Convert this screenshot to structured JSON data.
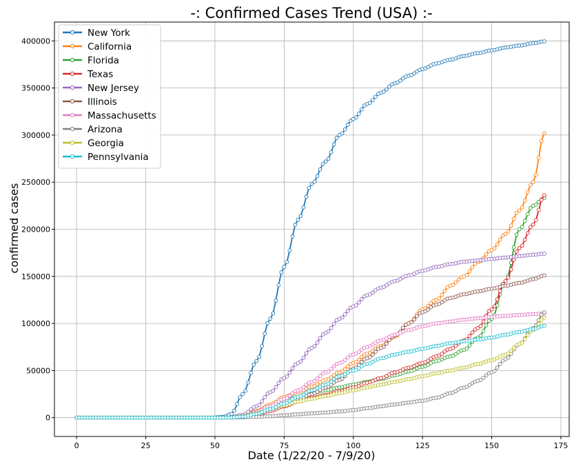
{
  "chart_data": {
    "type": "line",
    "title": "-: Confirmed Cases Trend (USA) :-",
    "xlabel": "Date (1/22/20 - 7/9/20)",
    "ylabel": "confirmed cases",
    "xlim": [
      -8,
      178
    ],
    "ylim": [
      -20000,
      420000
    ],
    "x_ticks": [
      0,
      25,
      50,
      75,
      100,
      125,
      150,
      175
    ],
    "y_ticks": [
      0,
      50000,
      100000,
      150000,
      200000,
      250000,
      300000,
      350000,
      400000
    ],
    "x_tick_labels": [
      "0",
      "25",
      "50",
      "75",
      "100",
      "125",
      "150",
      "175"
    ],
    "y_tick_labels": [
      "0",
      "50000",
      "100000",
      "150000",
      "200000",
      "250000",
      "300000",
      "350000",
      "400000"
    ],
    "grid": true,
    "legend_position": "top-left",
    "series": [
      {
        "name": "New York",
        "color": "#1f77b4",
        "anchors": [
          [
            0,
            0
          ],
          [
            48,
            0
          ],
          [
            53,
            800
          ],
          [
            56,
            4000
          ],
          [
            60,
            25000
          ],
          [
            65,
            60000
          ],
          [
            70,
            105000
          ],
          [
            75,
            160000
          ],
          [
            80,
            210000
          ],
          [
            85,
            248000
          ],
          [
            90,
            272000
          ],
          [
            95,
            300000
          ],
          [
            100,
            317000
          ],
          [
            105,
            333000
          ],
          [
            110,
            345000
          ],
          [
            115,
            355000
          ],
          [
            120,
            363000
          ],
          [
            125,
            370000
          ],
          [
            130,
            376000
          ],
          [
            135,
            380000
          ],
          [
            140,
            384000
          ],
          [
            145,
            387000
          ],
          [
            150,
            390000
          ],
          [
            155,
            393000
          ],
          [
            160,
            395000
          ],
          [
            165,
            397500
          ],
          [
            169,
            399500
          ]
        ]
      },
      {
        "name": "California",
        "color": "#ff7f0e",
        "anchors": [
          [
            0,
            0
          ],
          [
            55,
            0
          ],
          [
            60,
            2000
          ],
          [
            65,
            7000
          ],
          [
            70,
            14000
          ],
          [
            75,
            22000
          ],
          [
            80,
            27000
          ],
          [
            85,
            33000
          ],
          [
            90,
            40000
          ],
          [
            95,
            48000
          ],
          [
            100,
            58000
          ],
          [
            105,
            68000
          ],
          [
            110,
            76000
          ],
          [
            115,
            86000
          ],
          [
            120,
            100000
          ],
          [
            125,
            115000
          ],
          [
            130,
            125000
          ],
          [
            135,
            140000
          ],
          [
            140,
            150000
          ],
          [
            145,
            165000
          ],
          [
            150,
            178000
          ],
          [
            155,
            195000
          ],
          [
            160,
            220000
          ],
          [
            165,
            250000
          ],
          [
            169,
            302000
          ]
        ]
      },
      {
        "name": "Florida",
        "color": "#2ca02c",
        "anchors": [
          [
            0,
            0
          ],
          [
            55,
            0
          ],
          [
            60,
            1500
          ],
          [
            65,
            6000
          ],
          [
            70,
            12000
          ],
          [
            75,
            17500
          ],
          [
            80,
            22000
          ],
          [
            85,
            26000
          ],
          [
            90,
            29000
          ],
          [
            95,
            32000
          ],
          [
            100,
            35000
          ],
          [
            105,
            38000
          ],
          [
            110,
            41000
          ],
          [
            115,
            45000
          ],
          [
            120,
            49000
          ],
          [
            125,
            54000
          ],
          [
            130,
            60000
          ],
          [
            135,
            65000
          ],
          [
            140,
            72000
          ],
          [
            145,
            85000
          ],
          [
            150,
            105000
          ],
          [
            155,
            145000
          ],
          [
            160,
            200000
          ],
          [
            165,
            225000
          ],
          [
            169,
            233000
          ]
        ]
      },
      {
        "name": "Texas",
        "color": "#d62728",
        "anchors": [
          [
            0,
            0
          ],
          [
            55,
            0
          ],
          [
            60,
            800
          ],
          [
            65,
            3000
          ],
          [
            70,
            7000
          ],
          [
            75,
            12000
          ],
          [
            80,
            17000
          ],
          [
            85,
            21000
          ],
          [
            90,
            24000
          ],
          [
            95,
            28000
          ],
          [
            100,
            32000
          ],
          [
            105,
            37000
          ],
          [
            110,
            42000
          ],
          [
            115,
            48000
          ],
          [
            120,
            53000
          ],
          [
            125,
            58000
          ],
          [
            130,
            65000
          ],
          [
            135,
            73000
          ],
          [
            140,
            82000
          ],
          [
            145,
            95000
          ],
          [
            150,
            115000
          ],
          [
            155,
            145000
          ],
          [
            160,
            180000
          ],
          [
            165,
            205000
          ],
          [
            169,
            236000
          ]
        ]
      },
      {
        "name": "New Jersey",
        "color": "#9467bd",
        "anchors": [
          [
            0,
            0
          ],
          [
            55,
            0
          ],
          [
            60,
            3000
          ],
          [
            65,
            12000
          ],
          [
            70,
            27000
          ],
          [
            75,
            42000
          ],
          [
            80,
            58000
          ],
          [
            85,
            74000
          ],
          [
            90,
            90000
          ],
          [
            95,
            105000
          ],
          [
            100,
            118000
          ],
          [
            105,
            130000
          ],
          [
            110,
            138000
          ],
          [
            115,
            145000
          ],
          [
            120,
            151000
          ],
          [
            125,
            156000
          ],
          [
            130,
            160000
          ],
          [
            135,
            163000
          ],
          [
            140,
            165500
          ],
          [
            145,
            167000
          ],
          [
            150,
            168500
          ],
          [
            155,
            170000
          ],
          [
            160,
            171500
          ],
          [
            165,
            173000
          ],
          [
            169,
            174000
          ]
        ]
      },
      {
        "name": "Illinois",
        "color": "#8c564b",
        "anchors": [
          [
            0,
            0
          ],
          [
            55,
            0
          ],
          [
            60,
            1000
          ],
          [
            65,
            4000
          ],
          [
            70,
            9000
          ],
          [
            75,
            14000
          ],
          [
            80,
            19000
          ],
          [
            85,
            25000
          ],
          [
            90,
            32000
          ],
          [
            95,
            40000
          ],
          [
            100,
            52000
          ],
          [
            105,
            63000
          ],
          [
            110,
            74000
          ],
          [
            115,
            87000
          ],
          [
            120,
            100000
          ],
          [
            125,
            112000
          ],
          [
            130,
            120000
          ],
          [
            135,
            127000
          ],
          [
            140,
            131000
          ],
          [
            145,
            134000
          ],
          [
            150,
            137000
          ],
          [
            155,
            140000
          ],
          [
            160,
            143000
          ],
          [
            165,
            147000
          ],
          [
            169,
            151000
          ]
        ]
      },
      {
        "name": "Massachusetts",
        "color": "#e377c2",
        "anchors": [
          [
            0,
            0
          ],
          [
            55,
            0
          ],
          [
            60,
            1500
          ],
          [
            65,
            6000
          ],
          [
            70,
            12000
          ],
          [
            75,
            20000
          ],
          [
            80,
            29000
          ],
          [
            85,
            38000
          ],
          [
            90,
            48000
          ],
          [
            95,
            58000
          ],
          [
            100,
            67000
          ],
          [
            105,
            75000
          ],
          [
            110,
            82000
          ],
          [
            115,
            88000
          ],
          [
            120,
            93000
          ],
          [
            125,
            97000
          ],
          [
            130,
            100000
          ],
          [
            135,
            102000
          ],
          [
            140,
            104000
          ],
          [
            145,
            105500
          ],
          [
            150,
            107000
          ],
          [
            155,
            108000
          ],
          [
            160,
            109000
          ],
          [
            165,
            110000
          ],
          [
            169,
            110500
          ]
        ]
      },
      {
        "name": "Arizona",
        "color": "#7f7f7f",
        "anchors": [
          [
            0,
            0
          ],
          [
            55,
            0
          ],
          [
            60,
            300
          ],
          [
            65,
            800
          ],
          [
            70,
            1500
          ],
          [
            75,
            2500
          ],
          [
            80,
            3500
          ],
          [
            85,
            4500
          ],
          [
            90,
            5500
          ],
          [
            95,
            6500
          ],
          [
            100,
            8000
          ],
          [
            105,
            10000
          ],
          [
            110,
            12000
          ],
          [
            115,
            14000
          ],
          [
            120,
            16000
          ],
          [
            125,
            18000
          ],
          [
            130,
            21000
          ],
          [
            135,
            26000
          ],
          [
            140,
            32000
          ],
          [
            145,
            39000
          ],
          [
            150,
            48000
          ],
          [
            155,
            62000
          ],
          [
            160,
            78000
          ],
          [
            165,
            95000
          ],
          [
            169,
            112000
          ]
        ]
      },
      {
        "name": "Georgia",
        "color": "#bcbd22",
        "anchors": [
          [
            0,
            0
          ],
          [
            55,
            0
          ],
          [
            60,
            1500
          ],
          [
            65,
            4500
          ],
          [
            70,
            9000
          ],
          [
            75,
            13000
          ],
          [
            80,
            17000
          ],
          [
            85,
            20000
          ],
          [
            90,
            23000
          ],
          [
            95,
            26000
          ],
          [
            100,
            29000
          ],
          [
            105,
            32000
          ],
          [
            110,
            35000
          ],
          [
            115,
            38000
          ],
          [
            120,
            41000
          ],
          [
            125,
            44000
          ],
          [
            130,
            47000
          ],
          [
            135,
            50000
          ],
          [
            140,
            53000
          ],
          [
            145,
            57000
          ],
          [
            150,
            61000
          ],
          [
            155,
            67000
          ],
          [
            160,
            78000
          ],
          [
            165,
            93000
          ],
          [
            169,
            106000
          ]
        ]
      },
      {
        "name": "Pennsylvania",
        "color": "#17becf",
        "anchors": [
          [
            0,
            0
          ],
          [
            55,
            0
          ],
          [
            60,
            1000
          ],
          [
            65,
            4000
          ],
          [
            70,
            9000
          ],
          [
            75,
            15000
          ],
          [
            80,
            22000
          ],
          [
            85,
            29000
          ],
          [
            90,
            35000
          ],
          [
            95,
            44000
          ],
          [
            100,
            50000
          ],
          [
            105,
            57000
          ],
          [
            110,
            63000
          ],
          [
            115,
            67000
          ],
          [
            120,
            70000
          ],
          [
            125,
            73000
          ],
          [
            130,
            76000
          ],
          [
            135,
            79000
          ],
          [
            140,
            81000
          ],
          [
            145,
            83000
          ],
          [
            150,
            85000
          ],
          [
            155,
            88000
          ],
          [
            160,
            91000
          ],
          [
            165,
            94000
          ],
          [
            169,
            97500
          ]
        ]
      }
    ]
  }
}
